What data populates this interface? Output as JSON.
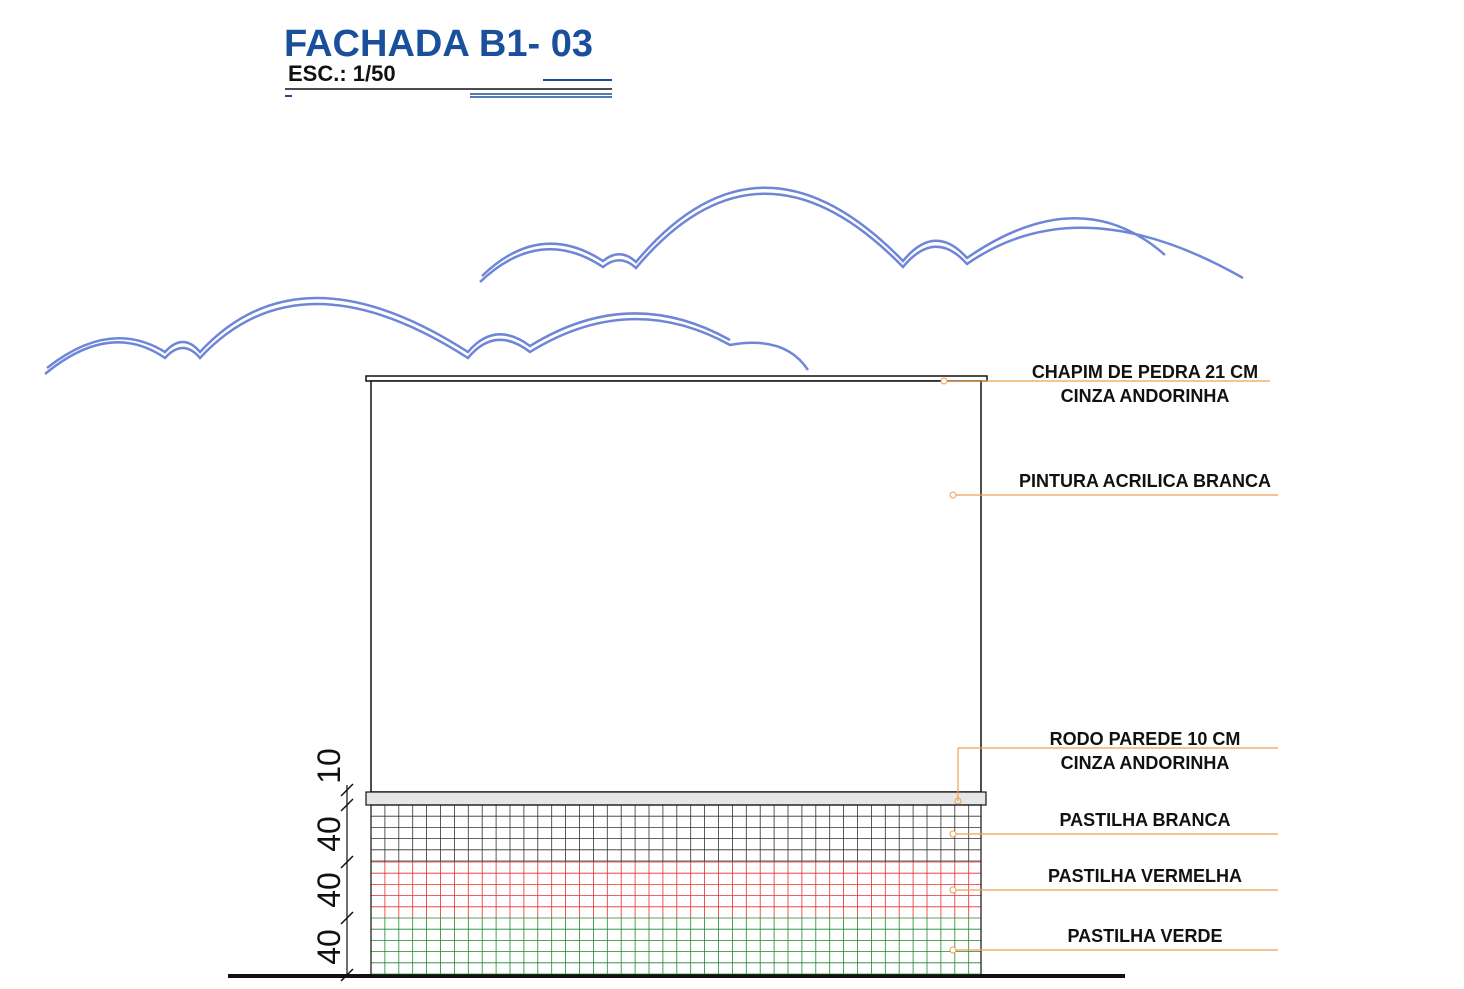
{
  "header": {
    "title": "FACHADA B1- 03",
    "scale": "ESC.: 1/50"
  },
  "callouts": [
    {
      "lines": [
        "CHAPIM DE PEDRA 21 CM",
        "CINZA ANDORINHA"
      ]
    },
    {
      "lines": [
        "PINTURA ACRILICA BRANCA"
      ]
    },
    {
      "lines": [
        "RODO PAREDE 10 CM",
        "CINZA ANDORINHA"
      ]
    },
    {
      "lines": [
        "PASTILHA BRANCA"
      ]
    },
    {
      "lines": [
        "PASTILHA VERMELHA"
      ]
    },
    {
      "lines": [
        "PASTILHA VERDE"
      ]
    }
  ],
  "dimensions": [
    "10",
    "40",
    "40",
    "40"
  ]
}
